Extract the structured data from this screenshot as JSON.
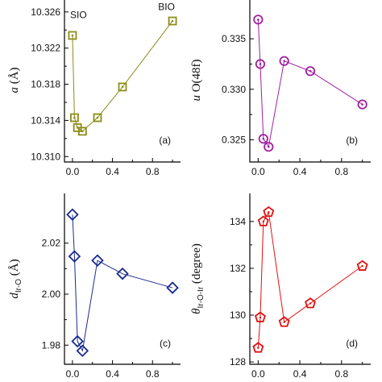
{
  "chart_data": [
    {
      "type": "line",
      "panel_label": "(a)",
      "ylabel_main": "a",
      "ylabel_unit": " (Å)",
      "x": [
        0,
        0.02,
        0.05,
        0.1,
        0.25,
        0.5,
        1.0
      ],
      "y": [
        10.3234,
        10.3143,
        10.3132,
        10.3128,
        10.3143,
        10.3177,
        10.325
      ],
      "xlim": [
        -0.08,
        1.08
      ],
      "ylim": [
        10.3094,
        10.3275
      ],
      "xticks": [
        "0.0",
        "0.4",
        "0.8"
      ],
      "xtick_values": [
        0,
        0.4,
        0.8
      ],
      "yticks": [
        "10.310",
        "10.314",
        "10.318",
        "10.322",
        "10.326"
      ],
      "ytick_values": [
        10.31,
        10.314,
        10.318,
        10.322,
        10.326
      ],
      "marker": "square",
      "color": "#8c8c1a",
      "annotations": [
        {
          "text": "SIO",
          "x": 0.06,
          "y": 10.3253
        },
        {
          "text": "BIO",
          "x": 0.94,
          "y": 10.3262
        }
      ]
    },
    {
      "type": "line",
      "panel_label": "(b)",
      "ylabel_main": "u",
      "ylabel_unit": " O(48f)",
      "x": [
        0,
        0.02,
        0.05,
        0.1,
        0.25,
        0.5,
        1.0
      ],
      "y": [
        0.3369,
        0.3325,
        0.3251,
        0.3243,
        0.3328,
        0.3318,
        0.3285
      ],
      "xlim": [
        -0.08,
        1.08
      ],
      "ylim": [
        0.3228,
        0.339
      ],
      "xticks": [
        "0.0",
        "0.4",
        "0.8"
      ],
      "xtick_values": [
        0,
        0.4,
        0.8
      ],
      "yticks": [
        "0.325",
        "0.330",
        "0.335"
      ],
      "ytick_values": [
        0.325,
        0.33,
        0.335
      ],
      "marker": "circle",
      "color": "#a020a0"
    },
    {
      "type": "line",
      "panel_label": "(c)",
      "ylabel_main": "d",
      "ylabel_sub": "Ir-O",
      "ylabel_unit": " (Å)",
      "x": [
        0,
        0.02,
        0.05,
        0.1,
        0.25,
        0.5,
        1.0
      ],
      "y": [
        2.0312,
        2.0148,
        1.9815,
        1.9778,
        2.0132,
        2.008,
        2.0025
      ],
      "xlim": [
        -0.08,
        1.08
      ],
      "ylim": [
        1.9725,
        2.0395
      ],
      "xticks": [
        "0.0",
        "0.4",
        "0.8"
      ],
      "xtick_values": [
        0,
        0.4,
        0.8
      ],
      "yticks": [
        "1.98",
        "2.00",
        "2.02"
      ],
      "ytick_values": [
        1.98,
        2.0,
        2.02
      ],
      "marker": "diamond",
      "color": "#1a2a8c"
    },
    {
      "type": "line",
      "panel_label": "(d)",
      "ylabel_main": "θ",
      "ylabel_sub": "Ir-O-Ir",
      "ylabel_unit": " (degree)",
      "x": [
        0,
        0.02,
        0.05,
        0.1,
        0.25,
        0.5,
        1.0
      ],
      "y": [
        128.6,
        129.9,
        134.0,
        134.4,
        129.7,
        130.5,
        132.1
      ],
      "xlim": [
        -0.08,
        1.08
      ],
      "ylim": [
        127.9,
        135.2
      ],
      "xticks": [
        "0.0",
        "0.4",
        "0.8"
      ],
      "xtick_values": [
        0,
        0.4,
        0.8
      ],
      "yticks": [
        "128",
        "130",
        "132",
        "134"
      ],
      "ytick_values": [
        128,
        130,
        132,
        134
      ],
      "marker": "pentagon",
      "color": "#e01010"
    }
  ]
}
